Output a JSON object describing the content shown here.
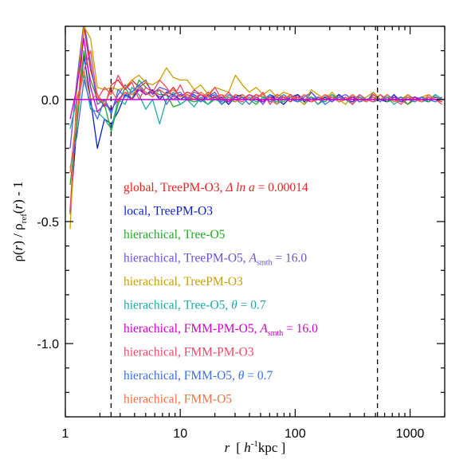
{
  "chart_data": {
    "type": "line",
    "xscale": "log",
    "xlim": [
      1,
      2000
    ],
    "ylim": [
      -1.3,
      0.3
    ],
    "x_ticks": [
      {
        "value": 1,
        "label": "1"
      },
      {
        "value": 10,
        "label": "10"
      },
      {
        "value": 100,
        "label": "100"
      },
      {
        "value": 1000,
        "label": "1000"
      }
    ],
    "y_ticks": [
      {
        "value": 0.0,
        "label": "0.0"
      },
      {
        "value": -0.5,
        "label": "-0.5"
      },
      {
        "value": -1.0,
        "label": "-1.0"
      }
    ],
    "xlabel": {
      "var": "r",
      "pre": "[ ",
      "h": "h",
      "exp": "-1",
      "post": "kpc ]"
    },
    "ylabel": {
      "p1": "ρ(",
      "r1": "r",
      "p2": ") / ρ",
      "sub": "ref",
      "p3": "(",
      "r2": "r",
      "p4": ") - 1"
    },
    "reference_line": {
      "y": 0.0,
      "color": "#cc00cc"
    },
    "vertical_lines": [
      2.5,
      520
    ],
    "grid": false,
    "legend_placement": "inside-left",
    "x": [
      1.1,
      1.26,
      1.45,
      1.66,
      1.9,
      2.19,
      2.51,
      2.88,
      3.31,
      3.8,
      4.37,
      5.01,
      5.75,
      6.61,
      7.59,
      8.71,
      10,
      11.5,
      13.2,
      15.1,
      17.4,
      20,
      22.9,
      26.3,
      30.2,
      34.7,
      39.8,
      45.7,
      52.5,
      60.3,
      69.2,
      79.4,
      91.2,
      105,
      120,
      138,
      158,
      182,
      209,
      240,
      275,
      316,
      363,
      417,
      479,
      550,
      631,
      724,
      832,
      955,
      1100,
      1260,
      1450,
      1660,
      1900
    ],
    "series": [
      {
        "name": "global, TreePM-O3, ",
        "math": "Δ ln a",
        "suffix": " = 0.00014",
        "color": "#ee2222",
        "values": [
          -0.47,
          -0.1,
          0.3,
          0.12,
          0.02,
          -0.03,
          0.06,
          0.08,
          0.04,
          0.08,
          0.05,
          0.07,
          0.03,
          0.04,
          0.02,
          0.05,
          0.01,
          0.03,
          0.02,
          0.0,
          0.03,
          0.01,
          0.02,
          -0.01,
          0.02,
          0.01,
          0.0,
          0.02,
          0.01,
          0.0,
          0.02,
          0.01,
          -0.01,
          0.02,
          0.0,
          0.01,
          -0.02,
          0.01,
          0.0,
          0.02,
          0.0,
          0.01,
          0.01,
          -0.01,
          0.02,
          0.0,
          -0.01,
          0.01,
          0.0,
          -0.02,
          0.01,
          -0.01,
          0.01,
          0.0,
          -0.01
        ]
      },
      {
        "name": "local, TreePM-O3",
        "color": "#0a1ecc",
        "values": [
          -0.46,
          -0.1,
          0.18,
          0.0,
          -0.2,
          -0.08,
          -0.1,
          -0.05,
          0.02,
          0.0,
          0.05,
          0.02,
          0.04,
          0.0,
          0.03,
          0.02,
          0.0,
          0.02,
          0.01,
          -0.01,
          0.02,
          0.0,
          0.01,
          -0.02,
          0.01,
          0.02,
          0.0,
          0.01,
          -0.01,
          0.02,
          0.0,
          -0.02,
          0.01,
          0.02,
          -0.01,
          0.03,
          0.0,
          0.01,
          -0.01,
          0.02,
          0.0,
          -0.01,
          0.02,
          0.0,
          0.01,
          0.0,
          -0.01,
          0.02,
          -0.01,
          0.0,
          0.01,
          0.0,
          -0.01,
          0.01,
          0.0
        ]
      },
      {
        "name": "hierachical, Tree-O5",
        "color": "#22aa22",
        "values": [
          -0.35,
          -0.1,
          0.2,
          0.08,
          0.0,
          -0.02,
          -0.13,
          -0.02,
          0.05,
          0.0,
          0.08,
          0.05,
          0.03,
          0.02,
          0.02,
          -0.03,
          -0.02,
          0.0,
          -0.01,
          0.0,
          -0.02,
          0.01,
          -0.02,
          0.0,
          -0.01,
          0.02,
          0.0,
          -0.02,
          0.01,
          0.0,
          -0.01,
          -0.01,
          0.02,
          0.0,
          -0.02,
          0.01,
          0.0,
          -0.01,
          0.02,
          0.0,
          0.0,
          -0.02,
          0.01,
          0.0,
          0.0,
          0.02,
          -0.01,
          0.0,
          0.01,
          -0.02,
          0.0,
          0.01,
          -0.01,
          0.02,
          0.0
        ]
      },
      {
        "name": "hierachical, TreePM-O5, ",
        "math": "A",
        "sub": "smth",
        "suffix": " = 16.0",
        "color": "#6a4fd6",
        "values": [
          -0.2,
          0.08,
          0.32,
          0.15,
          -0.02,
          0.0,
          -0.05,
          0.02,
          0.06,
          0.03,
          0.06,
          0.08,
          0.02,
          0.05,
          0.04,
          0.01,
          0.02,
          0.0,
          0.03,
          0.02,
          0.01,
          0.03,
          -0.01,
          0.02,
          0.01,
          0.0,
          0.02,
          0.01,
          -0.02,
          0.02,
          0.01,
          0.0,
          0.02,
          -0.01,
          0.01,
          0.03,
          0.0,
          0.02,
          -0.01,
          0.01,
          0.02,
          0.0,
          0.01,
          -0.01,
          0.03,
          0.0,
          0.01,
          0.0,
          -0.01,
          0.02,
          0.0,
          0.01,
          0.0,
          0.01,
          0.0
        ]
      },
      {
        "name": "hierachical, TreePM-O3",
        "color": "#c8a000",
        "values": [
          -0.53,
          0.05,
          0.3,
          0.25,
          0.05,
          0.04,
          0.05,
          0.04,
          0.05,
          0.08,
          0.1,
          0.07,
          0.06,
          0.08,
          0.13,
          0.09,
          0.08,
          0.08,
          0.04,
          0.06,
          0.02,
          0.05,
          0.04,
          0.03,
          0.1,
          0.06,
          0.03,
          0.05,
          0.02,
          0.04,
          0.01,
          0.03,
          0.02,
          0.0,
          -0.02,
          0.04,
          0.02,
          0.0,
          0.03,
          0.0,
          -0.02,
          0.02,
          0.0,
          0.01,
          0.03,
          0.0,
          0.02,
          -0.01,
          0.0,
          0.02,
          -0.01,
          0.01,
          0.02,
          0.0,
          0.01
        ]
      },
      {
        "name": "hierachical, Tree-O5, ",
        "math": "θ",
        "suffix": " = 0.7",
        "color": "#20a6a6",
        "values": [
          -0.12,
          0.0,
          0.1,
          -0.04,
          -0.05,
          -0.08,
          -0.12,
          0.0,
          -0.02,
          0.05,
          0.02,
          -0.04,
          0.0,
          -0.1,
          0.0,
          0.03,
          -0.02,
          0.0,
          -0.03,
          0.01,
          -0.02,
          0.0,
          -0.01,
          0.02,
          0.0,
          -0.02,
          0.01,
          -0.01,
          0.0,
          0.02,
          -0.02,
          0.0,
          0.01,
          -0.01,
          0.0,
          0.01,
          -0.02,
          0.0,
          0.02,
          -0.01,
          0.0,
          -0.02,
          0.01,
          0.0,
          -0.01,
          0.0,
          0.01,
          -0.02,
          0.0,
          0.01,
          0.0,
          -0.01,
          0.0,
          0.02,
          0.0
        ]
      },
      {
        "name": "hierachical, FMM-PM-O5, ",
        "math": "A",
        "sub": "smth",
        "suffix": " = 16.0",
        "color": "#cc00cc",
        "values": [
          -0.08,
          0.05,
          0.25,
          0.05,
          -0.05,
          -0.02,
          -0.04,
          0.0,
          0.03,
          0.0,
          0.04,
          0.02,
          0.03,
          0.01,
          0.02,
          0.0,
          0.02,
          0.01,
          0.0,
          0.02,
          0.0,
          0.01,
          0.0,
          -0.01,
          0.01,
          0.0,
          0.02,
          0.0,
          -0.01,
          0.01,
          0.0,
          0.01,
          0.0,
          0.01,
          0.0,
          -0.01,
          0.01,
          0.0,
          0.01,
          0.0,
          0.0,
          0.01,
          -0.01,
          0.0,
          0.01,
          0.0,
          0.0,
          0.01,
          0.0,
          0.0,
          0.01,
          0.0,
          0.0,
          0.0,
          0.0
        ]
      },
      {
        "name": "hierachical, FMM-PM-O3",
        "color": "#f04868",
        "values": [
          -0.45,
          0.0,
          0.12,
          0.2,
          0.0,
          0.05,
          0.02,
          0.1,
          0.04,
          0.07,
          0.0,
          0.05,
          0.03,
          0.08,
          0.05,
          0.01,
          0.06,
          0.0,
          0.04,
          0.02,
          0.01,
          0.05,
          0.0,
          0.03,
          0.0,
          -0.01,
          0.02,
          0.0,
          0.03,
          -0.02,
          0.01,
          0.0,
          0.02,
          0.0,
          0.02,
          -0.01,
          0.0,
          0.02,
          0.0,
          0.0,
          0.01,
          -0.02,
          0.02,
          0.0,
          -0.01,
          0.02,
          0.0,
          0.0,
          -0.02,
          0.01,
          0.0,
          0.0,
          0.01,
          0.0,
          -0.02
        ]
      },
      {
        "name": "hierachical, FMM-O5, ",
        "math": "θ",
        "suffix": " = 0.7",
        "color": "#3a70e0",
        "values": [
          -0.28,
          -0.15,
          0.08,
          -0.02,
          -0.08,
          0.0,
          -0.06,
          0.04,
          0.01,
          0.03,
          0.06,
          0.03,
          0.01,
          0.04,
          -0.02,
          0.02,
          0.03,
          0.0,
          0.02,
          -0.01,
          0.01,
          0.02,
          -0.02,
          0.01,
          0.0,
          0.01,
          -0.02,
          0.01,
          0.02,
          -0.01,
          0.0,
          0.02,
          0.0,
          -0.01,
          0.02,
          0.0,
          0.01,
          -0.02,
          0.0,
          0.01,
          0.0,
          0.02,
          -0.01,
          0.0,
          0.01,
          -0.01,
          0.02,
          0.0,
          0.01,
          0.0,
          -0.01,
          0.01,
          0.0,
          -0.01,
          0.01
        ]
      },
      {
        "name": "hierachical, FMM-O5",
        "color": "#f07040",
        "values": [
          -0.3,
          -0.05,
          0.12,
          0.0,
          0.02,
          -0.02,
          0.04,
          -0.01,
          0.03,
          0.02,
          0.05,
          0.03,
          0.01,
          0.04,
          0.02,
          0.04,
          0.01,
          0.02,
          0.0,
          0.03,
          0.01,
          0.0,
          0.02,
          0.01,
          -0.01,
          0.02,
          0.0,
          0.01,
          0.02,
          0.0,
          -0.02,
          0.01,
          0.01,
          0.0,
          0.02,
          -0.01,
          0.0,
          0.02,
          0.01,
          -0.01,
          0.0,
          0.02,
          0.0,
          -0.01,
          0.01,
          0.0,
          0.02,
          -0.01,
          0.0,
          0.01,
          0.0,
          -0.01,
          0.02,
          0.0,
          0.0
        ]
      }
    ]
  }
}
